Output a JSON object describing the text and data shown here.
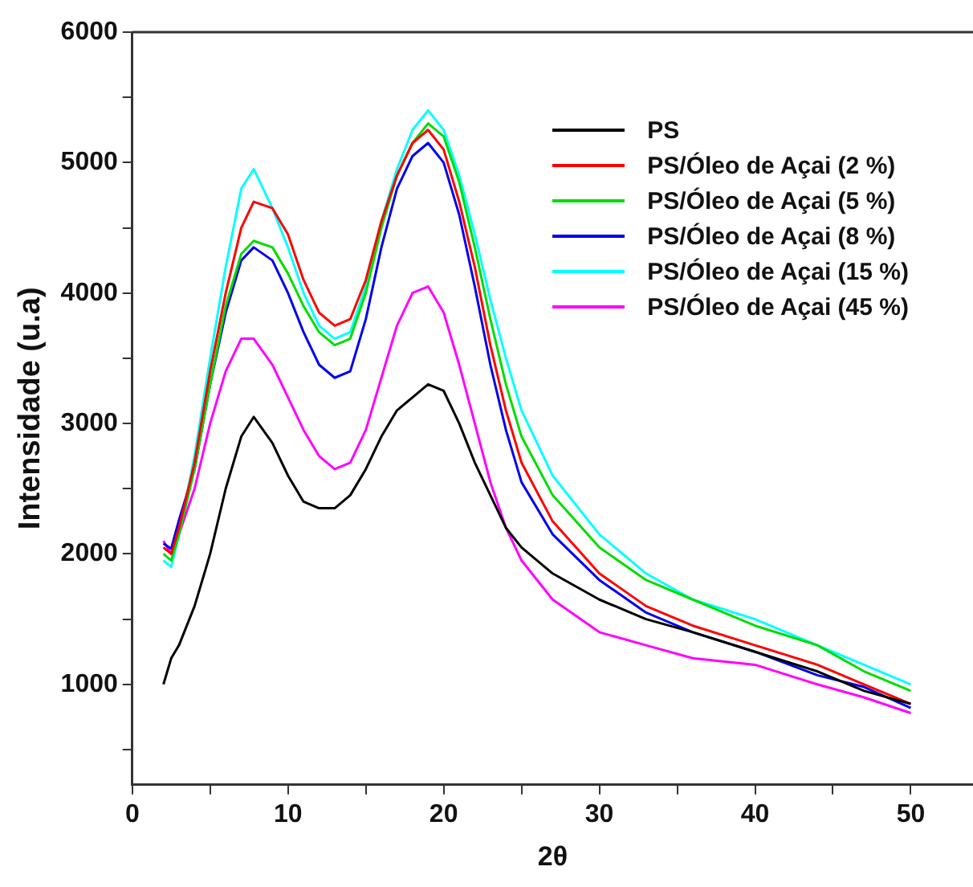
{
  "chart_data": {
    "type": "line",
    "xlabel": "2θ",
    "ylabel": "Intensidade (u.a)",
    "xlim": [
      0,
      54
    ],
    "ylim": [
      230,
      6000
    ],
    "xticks": [
      0,
      {
        "value": 5,
        "label": null
      },
      10,
      {
        "value": 15,
        "label": null
      },
      20,
      {
        "value": 25,
        "label": null
      },
      30,
      {
        "value": 35,
        "label": null
      },
      40,
      {
        "value": 45,
        "label": null
      },
      50
    ],
    "yticks": [
      {
        "value": 500,
        "label": null
      },
      1000,
      {
        "value": 1500,
        "label": null
      },
      2000,
      {
        "value": 2500,
        "label": null
      },
      3000,
      {
        "value": 3500,
        "label": null
      },
      4000,
      {
        "value": 4500,
        "label": null
      },
      5000,
      {
        "value": 5500,
        "label": null
      },
      6000
    ],
    "grid": false,
    "legend": "top right",
    "marker": "none",
    "line_style": "solid",
    "x": [
      2,
      2.5,
      3,
      4,
      5,
      6,
      7,
      7.8,
      9,
      10,
      11,
      12,
      13,
      14,
      15,
      16,
      17,
      18,
      19,
      20,
      21,
      22,
      23,
      24,
      25,
      27,
      30,
      33,
      36,
      40,
      44,
      47,
      50
    ],
    "series": [
      {
        "name": "PS",
        "color": "#000000",
        "values": [
          1000,
          1200,
          1300,
          1600,
          2000,
          2500,
          2900,
          3050,
          2850,
          2600,
          2400,
          2350,
          2350,
          2450,
          2650,
          2900,
          3100,
          3200,
          3300,
          3250,
          3000,
          2700,
          2450,
          2200,
          2050,
          1850,
          1650,
          1500,
          1400,
          1250,
          1100,
          950,
          850
        ]
      },
      {
        "name": "PS/Óleo de Açai (2 %)",
        "color": "#ff0000",
        "values": [
          2050,
          2000,
          2200,
          2700,
          3400,
          4000,
          4500,
          4700,
          4650,
          4450,
          4100,
          3850,
          3750,
          3800,
          4100,
          4550,
          4900,
          5150,
          5250,
          5100,
          4700,
          4200,
          3600,
          3100,
          2700,
          2250,
          1850,
          1600,
          1450,
          1300,
          1150,
          1000,
          850
        ]
      },
      {
        "name": "PS/Óleo de Açai (5 %)",
        "color": "#00dd00",
        "values": [
          2000,
          1950,
          2150,
          2650,
          3300,
          3900,
          4300,
          4400,
          4350,
          4150,
          3900,
          3700,
          3600,
          3650,
          4000,
          4500,
          4900,
          5150,
          5300,
          5200,
          4850,
          4350,
          3800,
          3300,
          2900,
          2450,
          2050,
          1800,
          1650,
          1450,
          1300,
          1100,
          950
        ]
      },
      {
        "name": "PS/Óleo de Açai (8 %)",
        "color": "#0000ee",
        "values": [
          2080,
          2040,
          2260,
          2650,
          3300,
          3850,
          4250,
          4350,
          4250,
          4000,
          3700,
          3450,
          3350,
          3400,
          3800,
          4350,
          4800,
          5050,
          5150,
          5000,
          4600,
          4050,
          3450,
          2950,
          2550,
          2150,
          1800,
          1550,
          1400,
          1250,
          1070,
          980,
          820
        ]
      },
      {
        "name": "PS/Óleo de Açai (15 %)",
        "color": "#00ffff",
        "values": [
          1950,
          1900,
          2150,
          2750,
          3500,
          4200,
          4800,
          4950,
          4650,
          4350,
          4000,
          3750,
          3650,
          3700,
          4050,
          4550,
          4950,
          5250,
          5400,
          5250,
          4900,
          4450,
          3950,
          3500,
          3100,
          2600,
          2150,
          1850,
          1650,
          1500,
          1300,
          1150,
          1000
        ]
      },
      {
        "name": "PS/Óleo de Açai (45 %)",
        "color": "#ff00ff",
        "values": [
          2100,
          2000,
          2150,
          2500,
          3000,
          3400,
          3650,
          3650,
          3450,
          3200,
          2950,
          2750,
          2650,
          2700,
          2950,
          3350,
          3750,
          4000,
          4050,
          3850,
          3450,
          3000,
          2550,
          2200,
          1950,
          1650,
          1400,
          1300,
          1200,
          1150,
          1000,
          900,
          780
        ]
      }
    ]
  }
}
